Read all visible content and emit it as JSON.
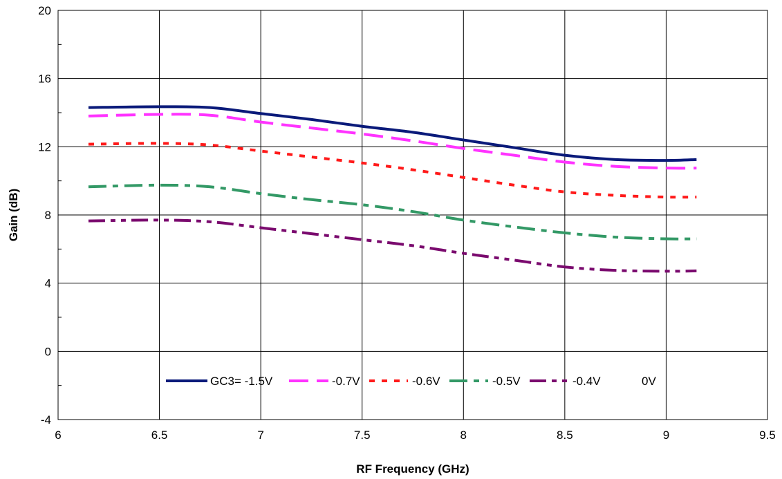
{
  "chart_data": {
    "type": "line",
    "title": "",
    "xlabel": "RF Frequency (GHz)",
    "ylabel": "Gain (dB)",
    "xlim": [
      6,
      9.5
    ],
    "ylim": [
      -4,
      20
    ],
    "xticks": [
      6,
      6.5,
      7,
      7.5,
      8,
      8.5,
      9,
      9.5
    ],
    "yticks": [
      -4,
      0,
      4,
      8,
      12,
      16,
      20
    ],
    "grid": true,
    "legend_placement": "bottom-center",
    "series": [
      {
        "name": "GC3= -1.5V",
        "color": "#0a1a7a",
        "dash": "solid",
        "x": [
          6.15,
          6.5,
          6.75,
          7.0,
          7.25,
          7.5,
          7.75,
          8.0,
          8.25,
          8.5,
          8.75,
          9.0,
          9.15
        ],
        "y": [
          14.3,
          14.35,
          14.3,
          13.95,
          13.6,
          13.2,
          12.85,
          12.4,
          11.95,
          11.5,
          11.25,
          11.2,
          11.25
        ]
      },
      {
        "name": "-0.7V",
        "color": "#ff33ff",
        "dash": "long",
        "x": [
          6.15,
          6.5,
          6.75,
          7.0,
          7.25,
          7.5,
          7.75,
          8.0,
          8.25,
          8.5,
          8.75,
          9.0,
          9.15
        ],
        "y": [
          13.8,
          13.9,
          13.85,
          13.45,
          13.1,
          12.75,
          12.35,
          11.9,
          11.5,
          11.1,
          10.85,
          10.75,
          10.75
        ]
      },
      {
        "name": "-0.6V",
        "color": "#ff1a1a",
        "dash": "short",
        "x": [
          6.15,
          6.5,
          6.75,
          7.0,
          7.25,
          7.5,
          7.75,
          8.0,
          8.25,
          8.5,
          8.75,
          9.0,
          9.15
        ],
        "y": [
          12.15,
          12.2,
          12.1,
          11.75,
          11.4,
          11.05,
          10.65,
          10.2,
          9.75,
          9.35,
          9.15,
          9.05,
          9.05
        ]
      },
      {
        "name": "-0.5V",
        "color": "#339966",
        "dash": "dashdot",
        "x": [
          6.15,
          6.5,
          6.75,
          7.0,
          7.25,
          7.5,
          7.75,
          8.0,
          8.25,
          8.5,
          8.75,
          9.0,
          9.15
        ],
        "y": [
          9.65,
          9.75,
          9.65,
          9.25,
          8.9,
          8.6,
          8.2,
          7.7,
          7.3,
          6.95,
          6.7,
          6.6,
          6.6
        ]
      },
      {
        "name": "-0.4V",
        "color": "#7a0a6e",
        "dash": "dashdotdot",
        "x": [
          6.15,
          6.5,
          6.75,
          7.0,
          7.25,
          7.5,
          7.75,
          8.0,
          8.25,
          8.5,
          8.75,
          9.0,
          9.15
        ],
        "y": [
          7.65,
          7.7,
          7.6,
          7.25,
          6.9,
          6.55,
          6.2,
          5.75,
          5.35,
          4.95,
          4.75,
          4.7,
          4.72
        ]
      },
      {
        "name": "0V",
        "color": "#000000",
        "dash": "none",
        "x": [],
        "y": []
      }
    ]
  }
}
